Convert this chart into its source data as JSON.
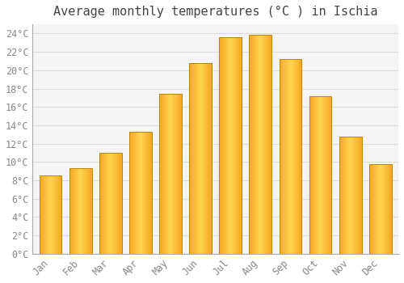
{
  "title": "Average monthly temperatures (°C ) in Ischia",
  "months": [
    "Jan",
    "Feb",
    "Mar",
    "Apr",
    "May",
    "Jun",
    "Jul",
    "Aug",
    "Sep",
    "Oct",
    "Nov",
    "Dec"
  ],
  "temperatures": [
    8.5,
    9.3,
    11.0,
    13.3,
    17.4,
    20.8,
    23.6,
    23.9,
    21.2,
    17.2,
    12.8,
    9.8
  ],
  "bar_color_center": "#FFD54F",
  "bar_color_edge": "#F5A623",
  "bar_outline_color": "#B8860B",
  "background_color": "#FFFFFF",
  "plot_bg_color": "#F5F5F5",
  "grid_color": "#DDDDDD",
  "tick_label_color": "#888888",
  "title_color": "#444444",
  "ylim": [
    0,
    25
  ],
  "yticks": [
    0,
    2,
    4,
    6,
    8,
    10,
    12,
    14,
    16,
    18,
    20,
    22,
    24
  ],
  "title_fontsize": 11,
  "tick_fontsize": 8.5,
  "bar_width": 0.75,
  "figsize": [
    5.0,
    3.5
  ],
  "dpi": 100
}
